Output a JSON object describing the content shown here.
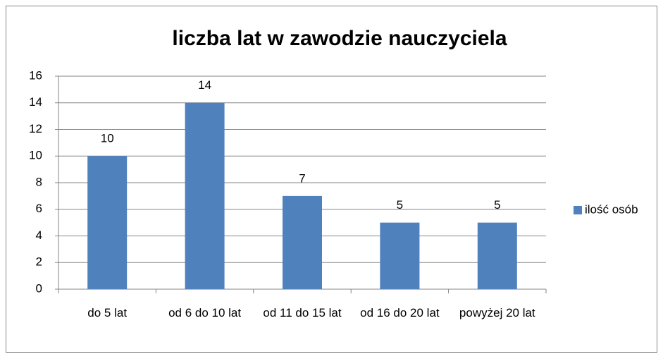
{
  "chart_data": {
    "type": "bar",
    "title": "liczba lat w zawodzie nauczyciela",
    "categories": [
      "do 5 lat",
      "od 6 do 10 lat",
      "od 11 do 15 lat",
      "od 16 do 20 lat",
      "powyżej 20 lat"
    ],
    "series": [
      {
        "name": "ilość osób",
        "color": "#4f81bd",
        "values": [
          10,
          14,
          7,
          5,
          5
        ]
      }
    ],
    "ylim": [
      0,
      16
    ],
    "yticks": [
      0,
      2,
      4,
      6,
      8,
      10,
      12,
      14,
      16
    ],
    "grid": true,
    "legend": "right"
  }
}
